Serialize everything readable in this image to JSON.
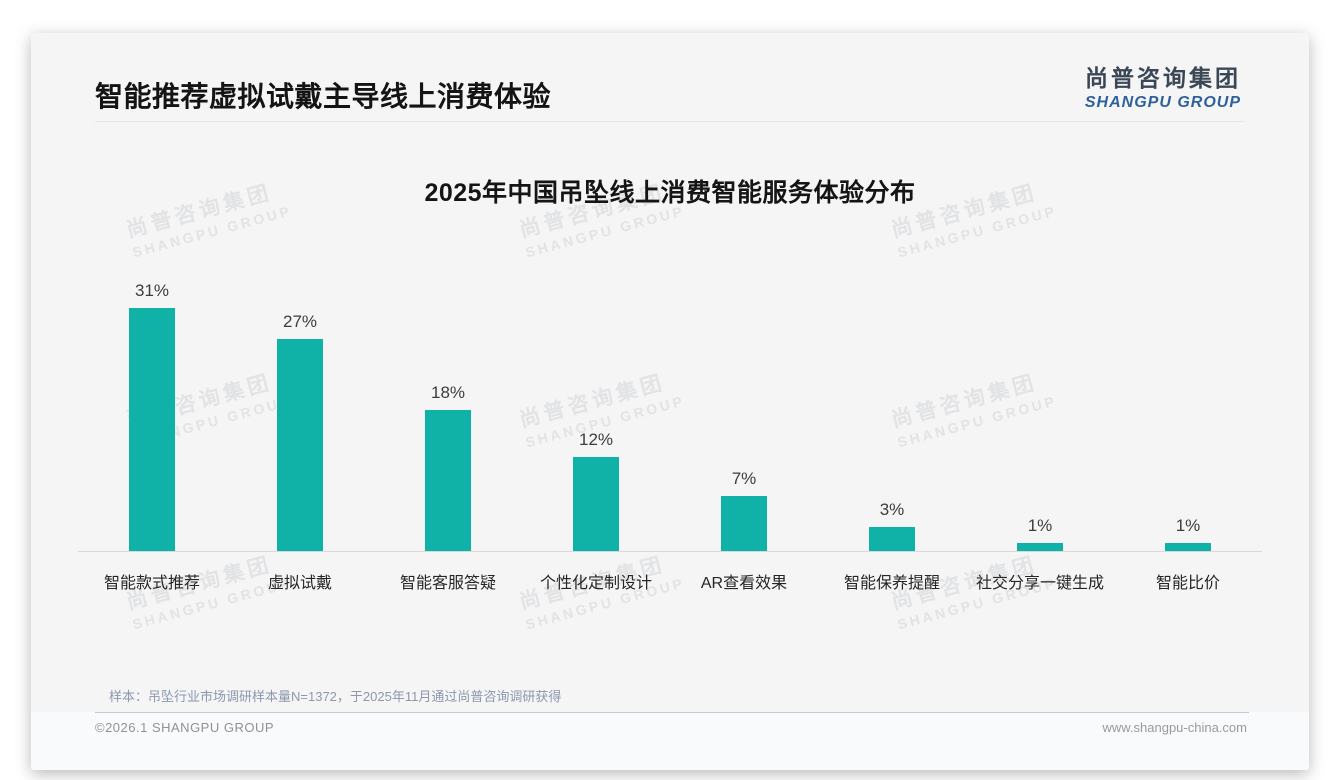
{
  "page": {
    "title": "智能推荐虚拟试戴主导线上消费体验",
    "logo": {
      "cn": "尚普咨询集团",
      "en": "SHANGPU GROUP"
    },
    "note": "样本：吊坠行业市场调研样本量N=1372，于2025年11月通过尚普咨询调研获得",
    "footer": {
      "copyright": "©2026.1 SHANGPU GROUP",
      "website": "www.shangpu-china.com"
    },
    "watermark": {
      "cn": "尚普咨询集团",
      "en": "SHANGPU GROUP"
    }
  },
  "chart_data": {
    "type": "bar",
    "title": "2025年中国吊坠线上消费智能服务体验分布",
    "categories": [
      "智能款式推荐",
      "虚拟试戴",
      "智能客服答疑",
      "个性化定制设计",
      "AR查看效果",
      "智能保养提醒",
      "社交分享一键生成",
      "智能比价"
    ],
    "values": [
      31,
      27,
      18,
      12,
      7,
      3,
      1,
      1
    ],
    "value_labels": [
      "31%",
      "27%",
      "18%",
      "12%",
      "7%",
      "3%",
      "1%",
      "1%"
    ],
    "bar_color": "#10b1a7",
    "xlabel": "",
    "ylabel": "",
    "ylim": [
      0,
      33
    ],
    "grid": false,
    "legend_position": "none"
  }
}
